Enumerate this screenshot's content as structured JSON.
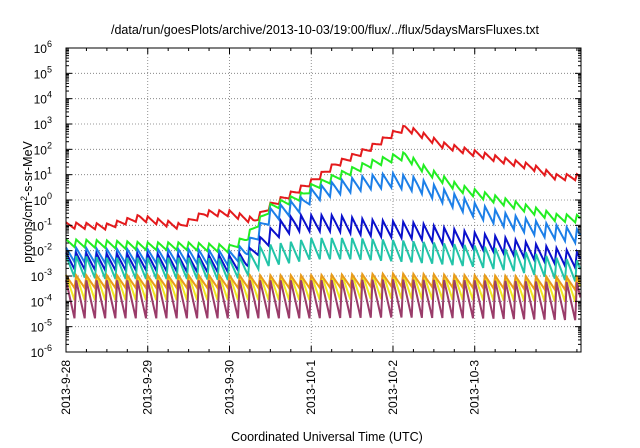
{
  "chart_data": {
    "type": "line",
    "title": "/data/run/goesPlots/archive/2013-10-03/19:00/flux/../flux/5daysMarsFluxes.txt",
    "xlabel": "Coordinated Universal Time (UTC)",
    "ylabel": "protons/cm²-s-sr-MeV",
    "yscale": "log",
    "ylim": [
      1e-06,
      1000000.0
    ],
    "xlim": [
      0,
      6.3
    ],
    "grid": true,
    "legend": "none",
    "x_ticks": [
      {
        "x": 0,
        "label": "2013-9-28"
      },
      {
        "x": 1,
        "label": "2013-9-29"
      },
      {
        "x": 2,
        "label": "2013-9-30"
      },
      {
        "x": 3,
        "label": "2013-10-1"
      },
      {
        "x": 4,
        "label": "2013-10-2"
      },
      {
        "x": 5,
        "label": "2013-10-3"
      }
    ],
    "y_ticks": [
      {
        "exp": -6,
        "label": "10^-6"
      },
      {
        "exp": -5,
        "label": "10^-5"
      },
      {
        "exp": -4,
        "label": "10^-4"
      },
      {
        "exp": -3,
        "label": "10^-3"
      },
      {
        "exp": -2,
        "label": "10^-2"
      },
      {
        "exp": -1,
        "label": "10^-1"
      },
      {
        "exp": 0,
        "label": "10^0"
      },
      {
        "exp": 1,
        "label": "10^1"
      },
      {
        "exp": 2,
        "label": "10^2"
      },
      {
        "exp": 3,
        "label": "10^3"
      },
      {
        "exp": 4,
        "label": "10^4"
      },
      {
        "exp": 5,
        "label": "10^5"
      },
      {
        "exp": 6,
        "label": "10^6"
      }
    ],
    "series": [
      {
        "color": "#e41a1c",
        "sawtooth": 0.12,
        "period": 0.125,
        "points": [
          [
            0,
            0.1
          ],
          [
            0.5,
            0.09
          ],
          [
            0.9,
            0.2
          ],
          [
            1.4,
            0.09
          ],
          [
            1.7,
            0.3
          ],
          [
            2.0,
            0.3
          ],
          [
            2.3,
            0.15
          ],
          [
            2.5,
            0.6
          ],
          [
            2.8,
            2
          ],
          [
            3.0,
            5
          ],
          [
            3.3,
            25
          ],
          [
            3.7,
            100
          ],
          [
            4.0,
            400
          ],
          [
            4.15,
            700
          ],
          [
            4.3,
            450
          ],
          [
            4.6,
            150
          ],
          [
            5.0,
            70
          ],
          [
            5.3,
            40
          ],
          [
            5.7,
            20
          ],
          [
            6.0,
            8
          ],
          [
            6.3,
            8
          ]
        ]
      },
      {
        "color": "#22ee22",
        "sawtooth": 0.15,
        "period": 0.125,
        "points": [
          [
            0,
            0.02
          ],
          [
            0.5,
            0.018
          ],
          [
            1.0,
            0.015
          ],
          [
            1.5,
            0.015
          ],
          [
            2.0,
            0.012
          ],
          [
            2.2,
            0.03
          ],
          [
            2.5,
            0.5
          ],
          [
            2.9,
            1.5
          ],
          [
            3.0,
            3
          ],
          [
            3.3,
            8
          ],
          [
            3.7,
            25
          ],
          [
            4.0,
            45
          ],
          [
            4.15,
            55
          ],
          [
            4.4,
            15
          ],
          [
            4.8,
            3
          ],
          [
            5.2,
            1.2
          ],
          [
            5.6,
            0.5
          ],
          [
            6.0,
            0.2
          ],
          [
            6.3,
            0.18
          ]
        ]
      },
      {
        "color": "#1c7fe8",
        "sawtooth": 0.28,
        "period": 0.125,
        "points": [
          [
            0,
            0.007
          ],
          [
            0.5,
            0.006
          ],
          [
            1.0,
            0.006
          ],
          [
            1.5,
            0.006
          ],
          [
            2.0,
            0.005
          ],
          [
            2.2,
            0.01
          ],
          [
            2.5,
            0.25
          ],
          [
            2.9,
            0.7
          ],
          [
            3.0,
            1.5
          ],
          [
            3.3,
            3
          ],
          [
            3.7,
            5
          ],
          [
            4.0,
            6
          ],
          [
            4.3,
            4
          ],
          [
            4.6,
            1.5
          ],
          [
            5.0,
            0.4
          ],
          [
            5.4,
            0.15
          ],
          [
            5.8,
            0.07
          ],
          [
            6.3,
            0.035
          ]
        ]
      },
      {
        "color": "#0a10cc",
        "sawtooth": 0.32,
        "period": 0.125,
        "points": [
          [
            0,
            0.004
          ],
          [
            0.5,
            0.0035
          ],
          [
            1.0,
            0.0035
          ],
          [
            1.5,
            0.003
          ],
          [
            2.0,
            0.003
          ],
          [
            2.2,
            0.004
          ],
          [
            2.4,
            0.02
          ],
          [
            2.6,
            0.07
          ],
          [
            2.8,
            0.12
          ],
          [
            3.0,
            0.12
          ],
          [
            3.3,
            0.12
          ],
          [
            3.7,
            0.08
          ],
          [
            4.0,
            0.07
          ],
          [
            4.3,
            0.06
          ],
          [
            4.6,
            0.04
          ],
          [
            5.0,
            0.025
          ],
          [
            5.4,
            0.015
          ],
          [
            5.8,
            0.008
          ],
          [
            6.3,
            0.004
          ]
        ]
      },
      {
        "color": "#22c4a8",
        "sawtooth": 0.42,
        "period": 0.125,
        "points": [
          [
            0,
            0.0025
          ],
          [
            0.5,
            0.002
          ],
          [
            1.0,
            0.002
          ],
          [
            1.5,
            0.002
          ],
          [
            2.0,
            0.0018
          ],
          [
            2.2,
            0.0025
          ],
          [
            2.4,
            0.006
          ],
          [
            2.8,
            0.009
          ],
          [
            3.0,
            0.012
          ],
          [
            3.5,
            0.012
          ],
          [
            4.0,
            0.01
          ],
          [
            4.5,
            0.008
          ],
          [
            5.0,
            0.006
          ],
          [
            5.5,
            0.004
          ],
          [
            6.0,
            0.002
          ],
          [
            6.3,
            0.0015
          ]
        ]
      },
      {
        "color": "#f0e822",
        "sawtooth": 0.5,
        "period": 0.125,
        "points": [
          [
            0,
            0.00035
          ],
          [
            1.0,
            0.00035
          ],
          [
            2.0,
            0.00035
          ],
          [
            3.0,
            0.00035
          ],
          [
            4.0,
            0.0004
          ],
          [
            5.0,
            0.00035
          ],
          [
            6.3,
            0.0003
          ]
        ]
      },
      {
        "color": "#e89a1c",
        "sawtooth": 0.25,
        "period": 0.125,
        "points": [
          [
            0,
            0.0006
          ],
          [
            1.0,
            0.0006
          ],
          [
            2.0,
            0.0006
          ],
          [
            3.0,
            0.0006
          ],
          [
            4.0,
            0.0007
          ],
          [
            5.0,
            0.0006
          ],
          [
            6.3,
            0.0005
          ]
        ]
      },
      {
        "color": "#9a3c6a",
        "sawtooth": 0.75,
        "period": 0.125,
        "points": [
          [
            0,
            0.00012
          ],
          [
            1.0,
            0.00012
          ],
          [
            2.0,
            0.00012
          ],
          [
            3.0,
            0.00012
          ],
          [
            4.0,
            0.00013
          ],
          [
            5.0,
            0.00012
          ],
          [
            6.3,
            0.0001
          ]
        ]
      }
    ]
  }
}
